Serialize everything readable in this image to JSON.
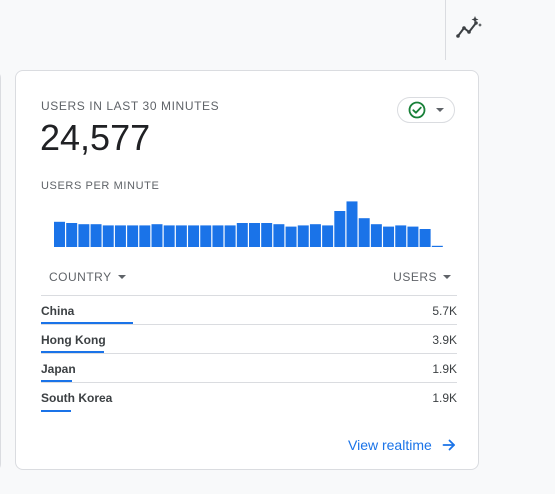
{
  "card": {
    "title": "USERS IN LAST 30 MINUTES",
    "total": "24,577",
    "subtitle": "USERS PER MINUTE",
    "status_icon": "check-circle-icon",
    "accent_color": "#1a73e8",
    "status_color": "#188038"
  },
  "chart_data": {
    "type": "bar",
    "values": [
      21,
      20,
      19,
      19,
      18,
      18,
      18,
      18,
      19,
      18,
      18,
      18,
      18,
      18,
      18,
      20,
      20,
      20,
      19,
      17,
      18,
      19,
      18,
      30,
      38,
      24,
      19,
      17,
      18,
      17,
      15,
      1
    ]
  },
  "table": {
    "headers": {
      "country": "COUNTRY",
      "users": "USERS"
    },
    "rows": [
      {
        "country": "China",
        "users": "5.7K",
        "share": 1.0
      },
      {
        "country": "Hong Kong",
        "users": "3.9K",
        "share": 0.68
      },
      {
        "country": "Japan",
        "users": "1.9K",
        "share": 0.34
      },
      {
        "country": "South Korea",
        "users": "1.9K",
        "share": 0.33
      }
    ]
  },
  "footer": {
    "link_label": "View realtime",
    "link_icon": "arrow-right-icon"
  },
  "toolbar": {
    "insights_icon": "sparkle-trend-icon"
  }
}
